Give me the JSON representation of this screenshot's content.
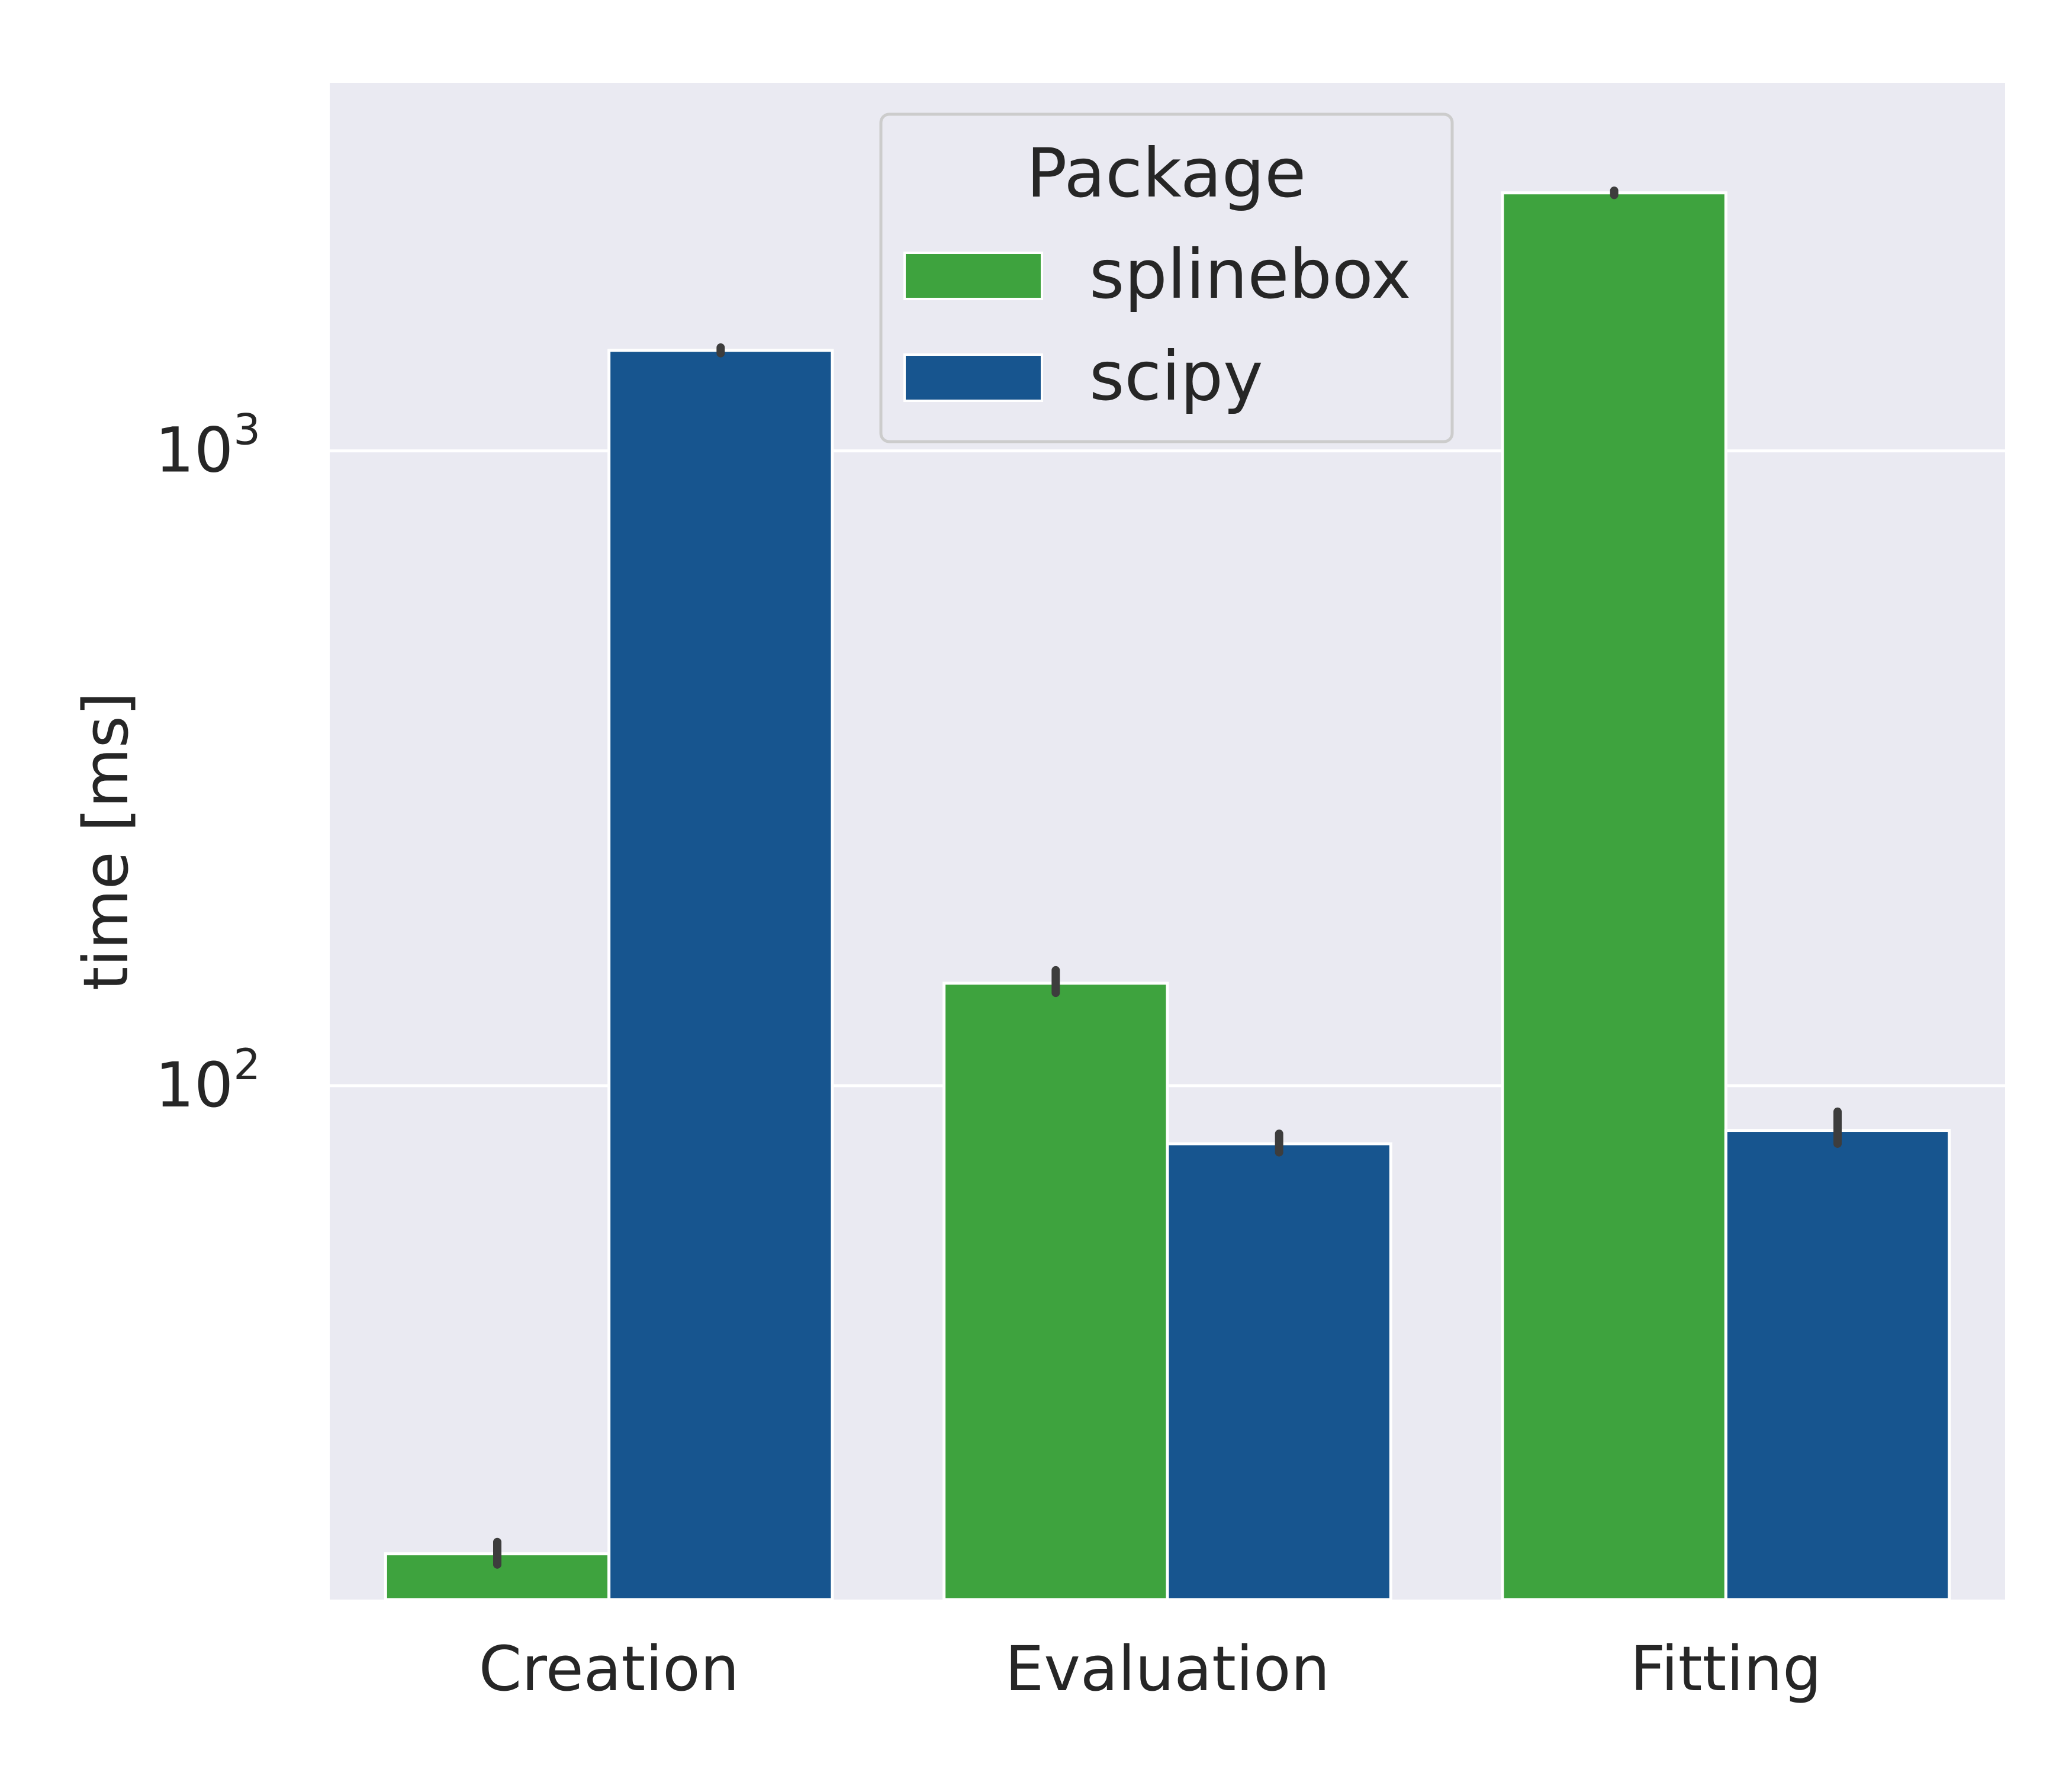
{
  "chart_data": {
    "type": "bar",
    "categories": [
      "Creation",
      "Evaluation",
      "Fitting"
    ],
    "series": [
      {
        "name": "splinebox",
        "color": "#3ea33e",
        "values": [
          18.3,
          145,
          2550
        ],
        "err": [
          [
            17.6,
            19.1
          ],
          [
            140,
            152
          ],
          [
            2530,
            2570
          ]
        ]
      },
      {
        "name": "scipy",
        "color": "#17558f",
        "values": [
          1440,
          81,
          85
        ],
        "err": [
          [
            1425,
            1455
          ],
          [
            78.5,
            84
          ],
          [
            81,
            91
          ]
        ]
      }
    ],
    "title": "",
    "xlabel": "",
    "ylabel": "time [ms]",
    "yscale": "log",
    "ylim": [
      15.5,
      3800
    ],
    "yticks": [
      {
        "value": 100,
        "base": "10",
        "exp": "2"
      },
      {
        "value": 1000,
        "base": "10",
        "exp": "3"
      }
    ],
    "grid": true,
    "legend": {
      "title": "Package",
      "placement": "top-center"
    },
    "colors": {
      "background": "#eaeaf2",
      "grid": "#ffffff",
      "errorbar": "#3d3d3d"
    }
  }
}
